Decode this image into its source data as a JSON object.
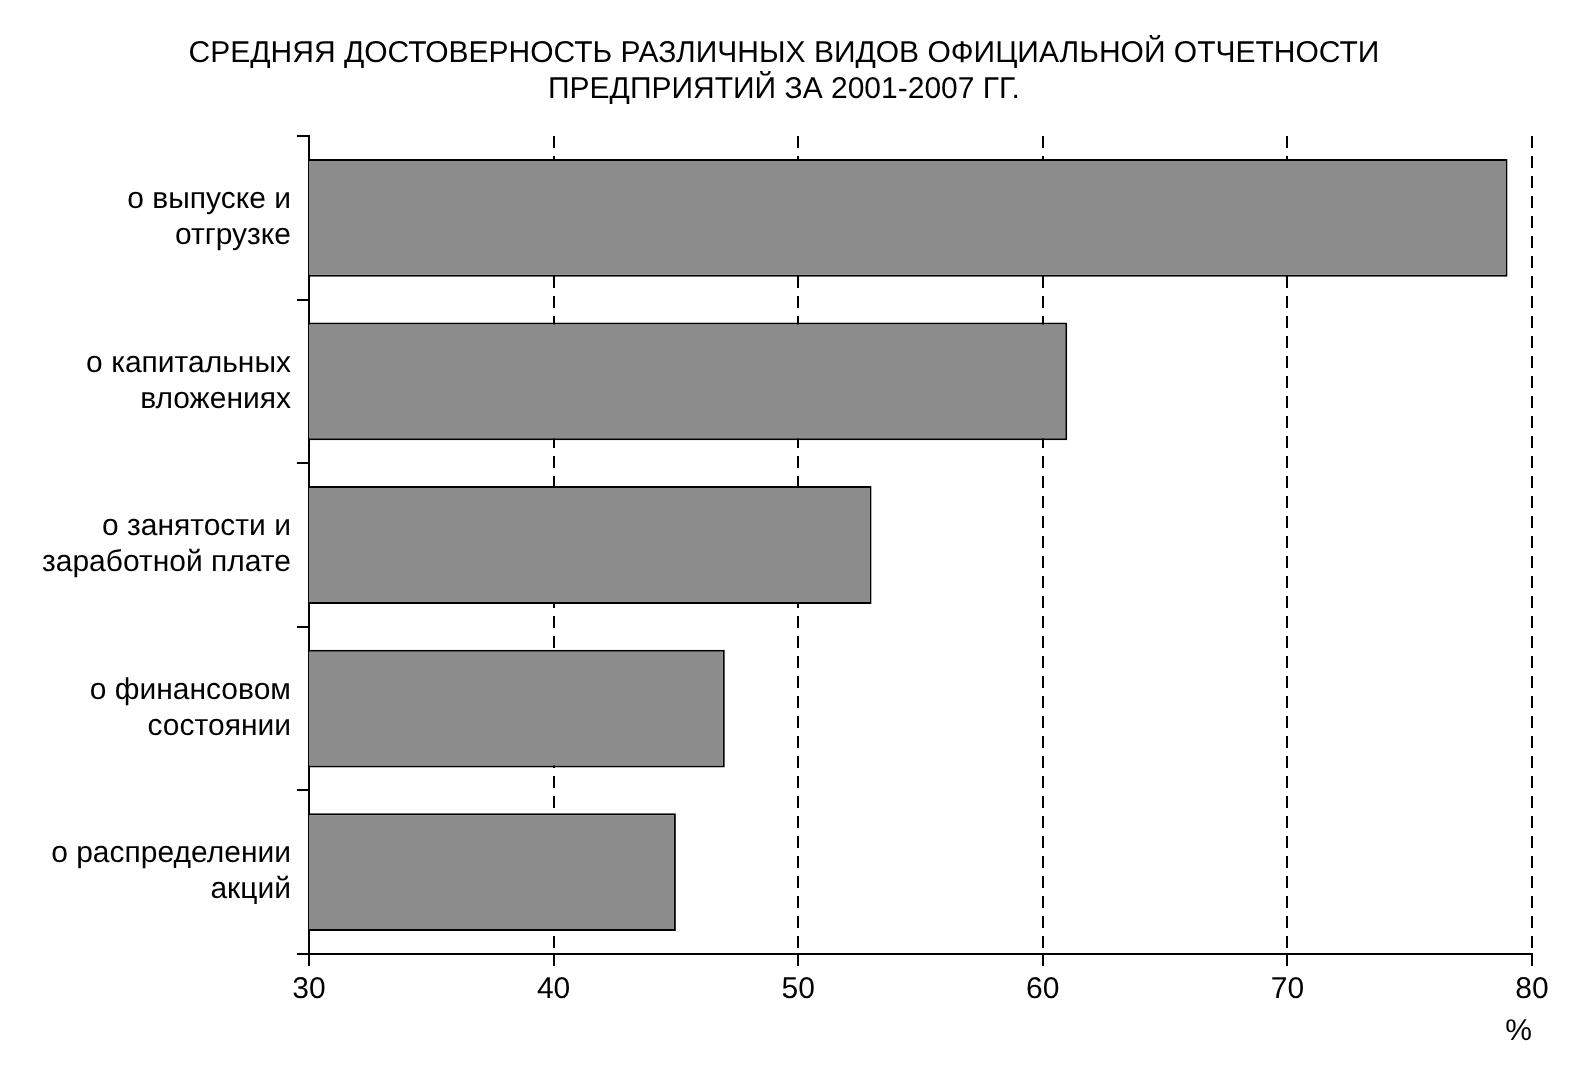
{
  "chart_data": {
    "type": "bar",
    "orientation": "horizontal",
    "title": "СРЕДНЯЯ ДОСТОВЕРНОСТЬ РАЗЛИЧНЫХ ВИДОВ ОФИЦИАЛЬНОЙ ОТЧЕТНОСТИ ПРЕДПРИЯТИЙ ЗА 2001-2007 ГГ.",
    "categories": [
      "о выпуске и отгрузке",
      "о капитальных вложениях",
      "о занятости и заработной плате",
      "о финансовом состоянии",
      "о распределении акций"
    ],
    "values": [
      79,
      61,
      53,
      47,
      45
    ],
    "color": "#8c8c8c",
    "xlim": [
      30,
      80
    ],
    "xticks": [
      30,
      40,
      50,
      60,
      70,
      80
    ],
    "xlabel": "%",
    "grid": "x"
  }
}
